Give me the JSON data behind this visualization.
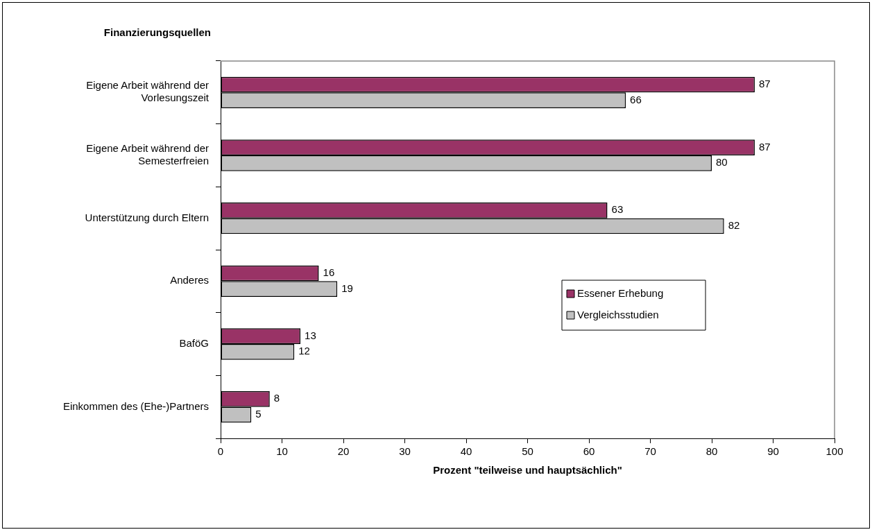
{
  "chart_data": {
    "type": "bar",
    "orientation": "horizontal",
    "ylabel": "Finanzierungsquellen",
    "xlabel": "Prozent \"teilweise und hauptsächlich\"",
    "categories": [
      "Eigene Arbeit während der Vorlesungszeit",
      "Eigene Arbeit während der Semesterfreien",
      "Unterstützung durch Eltern",
      "Anderes",
      "BaföG",
      "Einkommen des (Ehe-)Partners"
    ],
    "series": [
      {
        "name": "Essener Erhebung",
        "color": "#993366",
        "values": [
          87,
          87,
          63,
          16,
          13,
          8
        ]
      },
      {
        "name": "Vergleichsstudien",
        "color": "#c0c0c0",
        "values": [
          66,
          80,
          82,
          19,
          12,
          5
        ]
      }
    ],
    "xlim": [
      0,
      100
    ],
    "xticks": [
      0,
      10,
      20,
      30,
      40,
      50,
      60,
      70,
      80,
      90,
      100
    ],
    "data_labels": true,
    "legend": "bottom right",
    "grid": false
  }
}
